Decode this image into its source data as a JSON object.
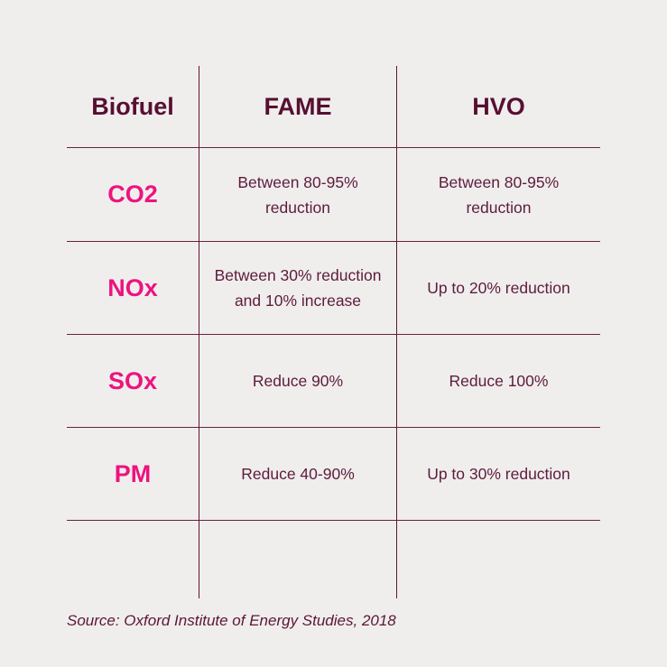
{
  "colors": {
    "background": "#efeeed",
    "accent_pink": "#ed137f",
    "header_maroon": "#570f31",
    "body_maroon": "#5e1b3c",
    "grid_line": "#5e1535"
  },
  "table": {
    "header": {
      "biofuel": "Biofuel",
      "fame": "FAME",
      "hvo": "HVO"
    },
    "rows": [
      {
        "label": "CO2",
        "fame": "Between 80-95%\nreduction",
        "hvo": "Between 80-95%\nreduction"
      },
      {
        "label": "NOx",
        "fame": "Between 30% reduction\nand 10% increase",
        "hvo": "Up to 20% reduction"
      },
      {
        "label": "SOx",
        "fame": "Reduce 90%",
        "hvo": "Reduce 100%"
      },
      {
        "label": "PM",
        "fame": "Reduce 40-90%",
        "hvo": "Up to 30% reduction"
      }
    ]
  },
  "source_note": "Source: Oxford Institute of Energy Studies, 2018",
  "chart_data": {
    "type": "table",
    "title": "",
    "columns": [
      "Biofuel",
      "FAME",
      "HVO"
    ],
    "rows": [
      [
        "CO2",
        "Between 80-95% reduction",
        "Between 80-95% reduction"
      ],
      [
        "NOx",
        "Between 30% reduction and 10% increase",
        "Up to 20% reduction"
      ],
      [
        "SOx",
        "Reduce 90%",
        "Reduce 100%"
      ],
      [
        "PM",
        "Reduce 40-90%",
        "Up to 30% reduction"
      ]
    ],
    "source": "Source: Oxford Institute of Energy Studies, 2018"
  }
}
